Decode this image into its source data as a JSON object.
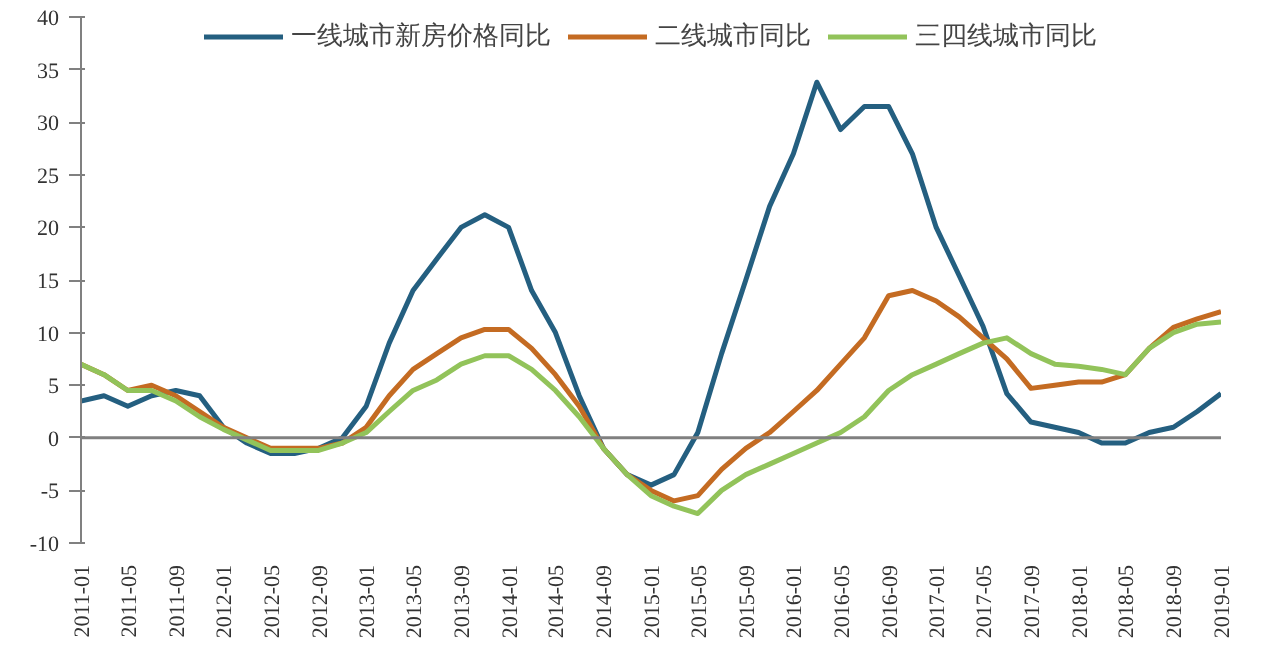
{
  "chart_data": {
    "type": "line",
    "x": [
      "2011-01",
      "2011-03",
      "2011-05",
      "2011-07",
      "2011-09",
      "2011-11",
      "2012-01",
      "2012-03",
      "2012-05",
      "2012-07",
      "2012-09",
      "2012-11",
      "2013-01",
      "2013-03",
      "2013-05",
      "2013-07",
      "2013-09",
      "2013-11",
      "2014-01",
      "2014-03",
      "2014-05",
      "2014-07",
      "2014-09",
      "2014-11",
      "2015-01",
      "2015-03",
      "2015-05",
      "2015-07",
      "2015-09",
      "2015-11",
      "2016-01",
      "2016-03",
      "2016-05",
      "2016-07",
      "2016-09",
      "2016-11",
      "2017-01",
      "2017-03",
      "2017-05",
      "2017-07",
      "2017-09",
      "2017-11",
      "2018-01",
      "2018-03",
      "2018-05",
      "2018-07",
      "2018-09",
      "2018-11",
      "2019-01"
    ],
    "series": [
      {
        "name": "一线城市新房价格同比",
        "color": "#245f80",
        "values": [
          3.5,
          4,
          3,
          4,
          4.5,
          4,
          1,
          -0.5,
          -1.5,
          -1.5,
          -1,
          0,
          3,
          9,
          14,
          17,
          20,
          21.2,
          20,
          14,
          10,
          4,
          -1,
          -3.5,
          -4.5,
          -3.5,
          0.5,
          8,
          15,
          22,
          27,
          33.8,
          29.3,
          31.5,
          31.5,
          27,
          20,
          15.4,
          10.6,
          4.2,
          1.5,
          1,
          0.5,
          -0.5,
          -0.5,
          0.5,
          1,
          2.5,
          4.2
        ]
      },
      {
        "name": "二线城市同比",
        "color": "#c46b22",
        "values": [
          7,
          6,
          4.5,
          5,
          4,
          2.5,
          1,
          0,
          -1,
          -1,
          -1,
          -0.5,
          1,
          4,
          6.5,
          8,
          9.5,
          10.3,
          10.3,
          8.5,
          6,
          3,
          -1,
          -3.5,
          -5,
          -6,
          -5.5,
          -3,
          -1,
          0.5,
          2.5,
          4.5,
          7,
          9.5,
          13.5,
          14,
          13,
          11.5,
          9.5,
          7.5,
          4.7,
          5,
          5.3,
          5.3,
          6,
          8.5,
          10.5,
          11.3,
          12
        ]
      },
      {
        "name": "三四线城市同比",
        "color": "#92c35a",
        "values": [
          7,
          6,
          4.5,
          4.5,
          3.5,
          2,
          0.8,
          -0.2,
          -1.2,
          -1.2,
          -1.2,
          -0.5,
          0.5,
          2.5,
          4.5,
          5.5,
          7,
          7.8,
          7.8,
          6.5,
          4.5,
          2,
          -1,
          -3.5,
          -5.5,
          -6.5,
          -7.2,
          -5,
          -3.5,
          -2.5,
          -1.5,
          -0.5,
          0.5,
          2,
          4.5,
          6,
          7,
          8,
          9,
          9.5,
          8,
          7,
          6.8,
          6.5,
          6,
          8.5,
          10,
          10.8,
          11
        ]
      }
    ],
    "xticks": [
      "2011-01",
      "2011-05",
      "2011-09",
      "2012-01",
      "2012-05",
      "2012-09",
      "2013-01",
      "2013-05",
      "2013-09",
      "2014-01",
      "2014-05",
      "2014-09",
      "2015-01",
      "2015-05",
      "2015-09",
      "2016-01",
      "2016-05",
      "2016-09",
      "2017-01",
      "2017-05",
      "2017-09",
      "2018-01",
      "2018-05",
      "2018-09",
      "2019-01"
    ],
    "xlim": [
      "2011-01",
      "2019-01"
    ],
    "ylim": [
      -10,
      40
    ],
    "yticks": [
      -10,
      -5,
      0,
      5,
      10,
      15,
      20,
      25,
      30,
      35,
      40
    ],
    "ref_lines": [
      {
        "axis": "y",
        "value": 0,
        "color": "#808080"
      }
    ],
    "legend": "top"
  }
}
